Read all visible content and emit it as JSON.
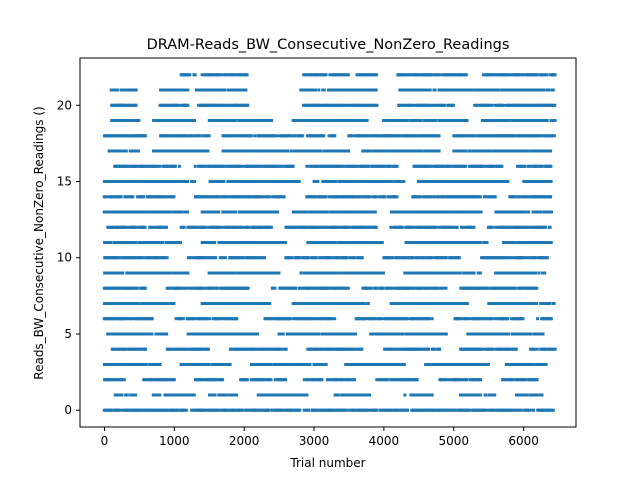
{
  "chart_data": {
    "type": "scatter",
    "title": "DRAM-Reads_BW_Consecutive_NonZero_Readings",
    "xlabel": "Trial number",
    "ylabel": "Reads_BW_Consecutive_NonZero_Readings ()",
    "xlim": [
      -350,
      6750
    ],
    "ylim": [
      -1.1,
      23.1
    ],
    "xticks": [
      0,
      1000,
      2000,
      3000,
      4000,
      5000,
      6000
    ],
    "yticks": [
      0,
      5,
      10,
      15,
      20
    ],
    "grid": false,
    "legend": "none",
    "marker_color": "#1f77b4",
    "x_max_trial": 6450,
    "rows": [
      {
        "y": 0,
        "ranges": [
          [
            0,
            6450
          ]
        ]
      },
      {
        "y": 1,
        "ranges": [
          [
            150,
            450
          ],
          [
            700,
            1300
          ],
          [
            1500,
            1900
          ],
          [
            2200,
            2900
          ],
          [
            3300,
            3800
          ],
          [
            4300,
            4700
          ],
          [
            5100,
            5600
          ],
          [
            5900,
            6300
          ]
        ]
      },
      {
        "y": 2,
        "ranges": [
          [
            0,
            300
          ],
          [
            550,
            1000
          ],
          [
            1300,
            1700
          ],
          [
            1950,
            2600
          ],
          [
            2850,
            3600
          ],
          [
            3900,
            4500
          ],
          [
            4800,
            5400
          ],
          [
            5700,
            6200
          ]
        ]
      },
      {
        "y": 3,
        "ranges": [
          [
            0,
            800
          ],
          [
            1100,
            1800
          ],
          [
            2100,
            3200
          ],
          [
            3450,
            4300
          ],
          [
            4600,
            5500
          ],
          [
            5750,
            6350
          ]
        ]
      },
      {
        "y": 4,
        "ranges": [
          [
            100,
            600
          ],
          [
            900,
            1500
          ],
          [
            1800,
            2600
          ],
          [
            2900,
            3700
          ],
          [
            4000,
            4800
          ],
          [
            5100,
            5900
          ],
          [
            6100,
            6450
          ]
        ]
      },
      {
        "y": 5,
        "ranges": [
          [
            50,
            900
          ],
          [
            1200,
            2200
          ],
          [
            2500,
            3600
          ],
          [
            3800,
            4900
          ],
          [
            5200,
            6300
          ]
        ]
      },
      {
        "y": 6,
        "ranges": [
          [
            0,
            700
          ],
          [
            1000,
            1900
          ],
          [
            2300,
            3300
          ],
          [
            3600,
            4700
          ],
          [
            5000,
            6000
          ],
          [
            6200,
            6400
          ]
        ]
      },
      {
        "y": 7,
        "ranges": [
          [
            0,
            1000
          ],
          [
            1400,
            2400
          ],
          [
            2700,
            3800
          ],
          [
            4100,
            5200
          ],
          [
            5500,
            6450
          ]
        ]
      },
      {
        "y": 8,
        "ranges": [
          [
            0,
            600
          ],
          [
            900,
            2100
          ],
          [
            2400,
            3500
          ],
          [
            3700,
            4900
          ],
          [
            5100,
            6200
          ]
        ]
      },
      {
        "y": 9,
        "ranges": [
          [
            0,
            1200
          ],
          [
            1500,
            2500
          ],
          [
            2800,
            4000
          ],
          [
            4300,
            5400
          ],
          [
            5600,
            6300
          ]
        ]
      },
      {
        "y": 10,
        "ranges": [
          [
            0,
            900
          ],
          [
            1200,
            2300
          ],
          [
            2600,
            3700
          ],
          [
            4000,
            5100
          ],
          [
            5400,
            6350
          ]
        ]
      },
      {
        "y": 11,
        "ranges": [
          [
            0,
            1100
          ],
          [
            1400,
            2600
          ],
          [
            2900,
            4000
          ],
          [
            4300,
            5500
          ],
          [
            5700,
            6400
          ]
        ]
      },
      {
        "y": 12,
        "ranges": [
          [
            50,
            900
          ],
          [
            1100,
            2400
          ],
          [
            2600,
            3900
          ],
          [
            4100,
            5300
          ],
          [
            5500,
            6400
          ]
        ]
      },
      {
        "y": 13,
        "ranges": [
          [
            0,
            1200
          ],
          [
            1400,
            2500
          ],
          [
            2700,
            3900
          ],
          [
            4100,
            5400
          ],
          [
            5600,
            6400
          ]
        ]
      },
      {
        "y": 14,
        "ranges": [
          [
            0,
            1000
          ],
          [
            1300,
            2600
          ],
          [
            2900,
            4200
          ],
          [
            4400,
            5600
          ],
          [
            5800,
            6400
          ]
        ]
      },
      {
        "y": 15,
        "ranges": [
          [
            0,
            1300
          ],
          [
            1500,
            2800
          ],
          [
            3000,
            4300
          ],
          [
            4500,
            5800
          ],
          [
            6000,
            6400
          ]
        ]
      },
      {
        "y": 16,
        "ranges": [
          [
            150,
            1100
          ],
          [
            1300,
            2700
          ],
          [
            2900,
            4200
          ],
          [
            4400,
            5700
          ],
          [
            5900,
            6400
          ]
        ]
      },
      {
        "y": 17,
        "ranges": [
          [
            50,
            500
          ],
          [
            700,
            1500
          ],
          [
            1700,
            3500
          ],
          [
            3700,
            4800
          ],
          [
            5000,
            6400
          ]
        ]
      },
      {
        "y": 18,
        "ranges": [
          [
            0,
            600
          ],
          [
            800,
            1500
          ],
          [
            1700,
            3300
          ],
          [
            3500,
            4800
          ],
          [
            5000,
            6450
          ]
        ]
      },
      {
        "y": 19,
        "ranges": [
          [
            100,
            500
          ],
          [
            700,
            1300
          ],
          [
            1500,
            2400
          ],
          [
            2700,
            3800
          ],
          [
            4000,
            5200
          ],
          [
            5400,
            6450
          ]
        ]
      },
      {
        "y": 20,
        "ranges": [
          [
            100,
            450
          ],
          [
            800,
            1200
          ],
          [
            1350,
            2050
          ],
          [
            2850,
            3900
          ],
          [
            4200,
            5000
          ],
          [
            5300,
            6450
          ]
        ]
      },
      {
        "y": 21,
        "ranges": [
          [
            100,
            450
          ],
          [
            800,
            1200
          ],
          [
            1300,
            2050
          ],
          [
            2800,
            3900
          ],
          [
            4200,
            6450
          ]
        ]
      },
      {
        "y": 22,
        "ranges": [
          [
            1100,
            1300
          ],
          [
            1400,
            2050
          ],
          [
            2850,
            3500
          ],
          [
            3600,
            3900
          ],
          [
            4200,
            5200
          ],
          [
            5400,
            6450
          ]
        ]
      }
    ]
  }
}
